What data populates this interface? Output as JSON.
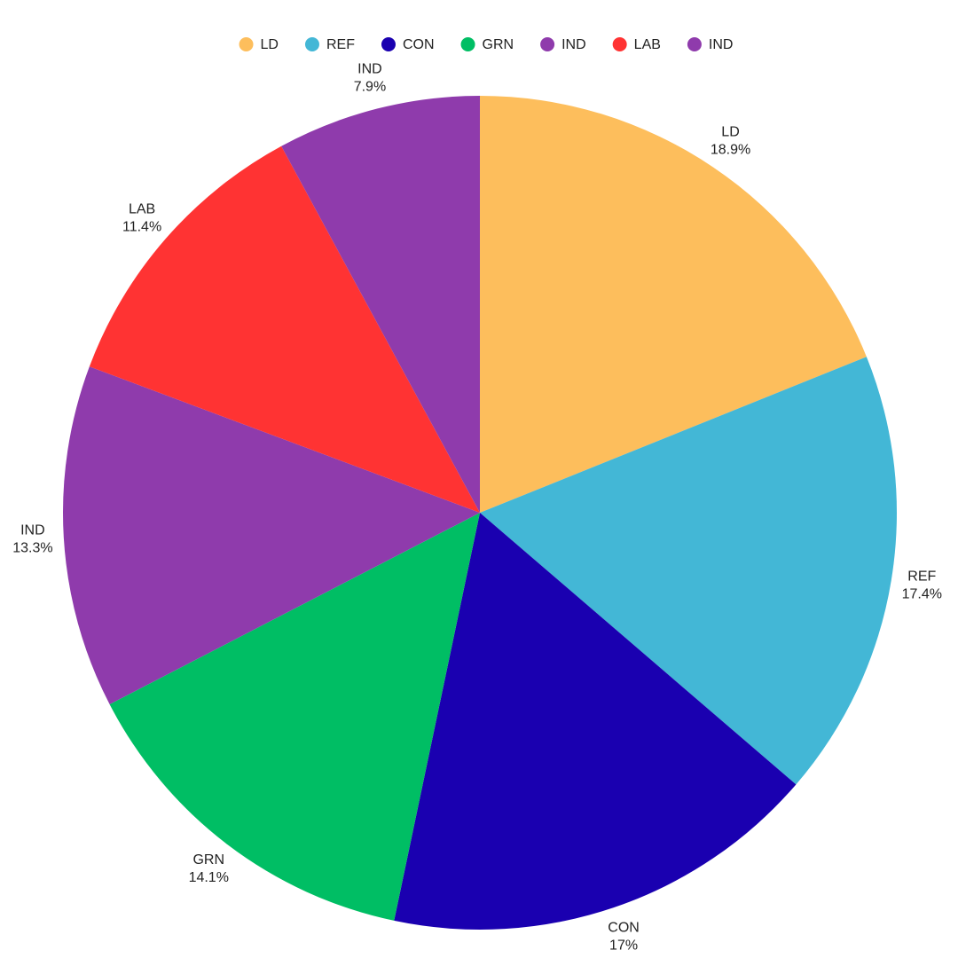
{
  "chart_data": {
    "type": "pie",
    "categories": [
      "LD",
      "REF",
      "CON",
      "GRN",
      "IND",
      "LAB",
      "IND"
    ],
    "values": [
      18.9,
      17.4,
      17,
      14.1,
      13.3,
      11.4,
      7.9
    ],
    "value_labels": [
      "18.9%",
      "17.4%",
      "17%",
      "14.1%",
      "13.3%",
      "11.4%",
      "7.9%"
    ],
    "colors": [
      "#fdbe5c",
      "#43b7d6",
      "#1a00b0",
      "#00be64",
      "#8f3bac",
      "#ff3333",
      "#8f3bac"
    ],
    "legend": "top"
  }
}
